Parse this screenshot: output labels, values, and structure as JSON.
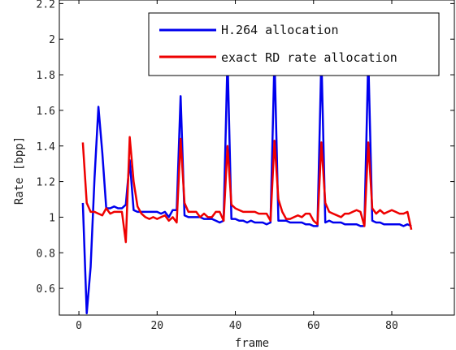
{
  "chart_data": {
    "type": "line",
    "title": "",
    "xlabel": "frame",
    "ylabel": "Rate [bpp]",
    "xlim": [
      -5,
      96
    ],
    "ylim": [
      0.45,
      2.22
    ],
    "xticks": [
      0,
      20,
      40,
      60,
      80
    ],
    "yticks": [
      0.6,
      0.8,
      1,
      1.2,
      1.4,
      1.6,
      1.8,
      2,
      2.2
    ],
    "xtick_labels": [
      "0",
      "20",
      "40",
      "60",
      "80"
    ],
    "ytick_labels": [
      "0.6",
      "0.8",
      "1",
      "1.2",
      "1.4",
      "1.6",
      "1.8",
      "2",
      "2.2"
    ],
    "grid": false,
    "legend_position": "top-right",
    "series": [
      {
        "name": "H.264 allocation",
        "color": "#0000ee",
        "points": [
          [
            1,
            1.08
          ],
          [
            2,
            0.46
          ],
          [
            3,
            0.72
          ],
          [
            4,
            1.22
          ],
          [
            5,
            1.62
          ],
          [
            6,
            1.36
          ],
          [
            7,
            1.05
          ],
          [
            8,
            1.05
          ],
          [
            9,
            1.06
          ],
          [
            10,
            1.05
          ],
          [
            11,
            1.05
          ],
          [
            12,
            1.07
          ],
          [
            13,
            1.32
          ],
          [
            14,
            1.04
          ],
          [
            15,
            1.03
          ],
          [
            16,
            1.03
          ],
          [
            17,
            1.03
          ],
          [
            18,
            1.03
          ],
          [
            19,
            1.03
          ],
          [
            20,
            1.03
          ],
          [
            21,
            1.02
          ],
          [
            22,
            1.03
          ],
          [
            23,
            1.0
          ],
          [
            24,
            1.04
          ],
          [
            25,
            1.04
          ],
          [
            26,
            1.68
          ],
          [
            27,
            1.01
          ],
          [
            28,
            1.0
          ],
          [
            29,
            1.0
          ],
          [
            30,
            1.0
          ],
          [
            31,
            1.0
          ],
          [
            32,
            0.99
          ],
          [
            33,
            0.99
          ],
          [
            34,
            0.99
          ],
          [
            35,
            0.98
          ],
          [
            36,
            0.97
          ],
          [
            37,
            0.98
          ],
          [
            38,
            1.9
          ],
          [
            39,
            0.99
          ],
          [
            40,
            0.99
          ],
          [
            41,
            0.98
          ],
          [
            42,
            0.98
          ],
          [
            43,
            0.97
          ],
          [
            44,
            0.98
          ],
          [
            45,
            0.97
          ],
          [
            46,
            0.97
          ],
          [
            47,
            0.97
          ],
          [
            48,
            0.96
          ],
          [
            49,
            0.97
          ],
          [
            50,
            1.9
          ],
          [
            51,
            0.98
          ],
          [
            52,
            0.98
          ],
          [
            53,
            0.98
          ],
          [
            54,
            0.97
          ],
          [
            55,
            0.97
          ],
          [
            56,
            0.97
          ],
          [
            57,
            0.97
          ],
          [
            58,
            0.96
          ],
          [
            59,
            0.96
          ],
          [
            60,
            0.95
          ],
          [
            61,
            0.95
          ],
          [
            62,
            1.9
          ],
          [
            63,
            0.97
          ],
          [
            64,
            0.98
          ],
          [
            65,
            0.97
          ],
          [
            66,
            0.97
          ],
          [
            67,
            0.97
          ],
          [
            68,
            0.96
          ],
          [
            69,
            0.96
          ],
          [
            70,
            0.96
          ],
          [
            71,
            0.96
          ],
          [
            72,
            0.95
          ],
          [
            73,
            0.95
          ],
          [
            74,
            1.9
          ],
          [
            75,
            0.98
          ],
          [
            76,
            0.97
          ],
          [
            77,
            0.97
          ],
          [
            78,
            0.96
          ],
          [
            79,
            0.96
          ],
          [
            80,
            0.96
          ],
          [
            81,
            0.96
          ],
          [
            82,
            0.96
          ],
          [
            83,
            0.95
          ],
          [
            84,
            0.96
          ],
          [
            85,
            0.95
          ]
        ]
      },
      {
        "name": "exact RD rate allocation",
        "color": "#ee0000",
        "points": [
          [
            1,
            1.42
          ],
          [
            2,
            1.08
          ],
          [
            3,
            1.03
          ],
          [
            4,
            1.03
          ],
          [
            5,
            1.02
          ],
          [
            6,
            1.01
          ],
          [
            7,
            1.05
          ],
          [
            8,
            1.02
          ],
          [
            9,
            1.03
          ],
          [
            10,
            1.03
          ],
          [
            11,
            1.03
          ],
          [
            12,
            0.86
          ],
          [
            13,
            1.45
          ],
          [
            14,
            1.2
          ],
          [
            15,
            1.06
          ],
          [
            16,
            1.02
          ],
          [
            17,
            1.0
          ],
          [
            18,
            0.99
          ],
          [
            19,
            1.0
          ],
          [
            20,
            0.99
          ],
          [
            21,
            1.0
          ],
          [
            22,
            1.01
          ],
          [
            23,
            0.98
          ],
          [
            24,
            1.0
          ],
          [
            25,
            0.97
          ],
          [
            26,
            1.44
          ],
          [
            27,
            1.08
          ],
          [
            28,
            1.03
          ],
          [
            29,
            1.03
          ],
          [
            30,
            1.03
          ],
          [
            31,
            1.0
          ],
          [
            32,
            1.02
          ],
          [
            33,
            1.0
          ],
          [
            34,
            1.0
          ],
          [
            35,
            1.03
          ],
          [
            36,
            1.03
          ],
          [
            37,
            0.98
          ],
          [
            38,
            1.4
          ],
          [
            39,
            1.07
          ],
          [
            40,
            1.05
          ],
          [
            41,
            1.04
          ],
          [
            42,
            1.03
          ],
          [
            43,
            1.03
          ],
          [
            44,
            1.03
          ],
          [
            45,
            1.03
          ],
          [
            46,
            1.02
          ],
          [
            47,
            1.02
          ],
          [
            48,
            1.02
          ],
          [
            49,
            0.98
          ],
          [
            50,
            1.43
          ],
          [
            51,
            1.1
          ],
          [
            52,
            1.03
          ],
          [
            53,
            0.99
          ],
          [
            54,
            0.99
          ],
          [
            55,
            1.0
          ],
          [
            56,
            1.01
          ],
          [
            57,
            1.0
          ],
          [
            58,
            1.02
          ],
          [
            59,
            1.02
          ],
          [
            60,
            0.98
          ],
          [
            61,
            0.96
          ],
          [
            62,
            1.42
          ],
          [
            63,
            1.08
          ],
          [
            64,
            1.03
          ],
          [
            65,
            1.02
          ],
          [
            66,
            1.01
          ],
          [
            67,
            1.0
          ],
          [
            68,
            1.02
          ],
          [
            69,
            1.02
          ],
          [
            70,
            1.03
          ],
          [
            71,
            1.04
          ],
          [
            72,
            1.03
          ],
          [
            73,
            0.95
          ],
          [
            74,
            1.42
          ],
          [
            75,
            1.05
          ],
          [
            76,
            1.02
          ],
          [
            77,
            1.04
          ],
          [
            78,
            1.02
          ],
          [
            79,
            1.03
          ],
          [
            80,
            1.04
          ],
          [
            81,
            1.03
          ],
          [
            82,
            1.02
          ],
          [
            83,
            1.02
          ],
          [
            84,
            1.03
          ],
          [
            85,
            0.93
          ]
        ]
      }
    ]
  }
}
